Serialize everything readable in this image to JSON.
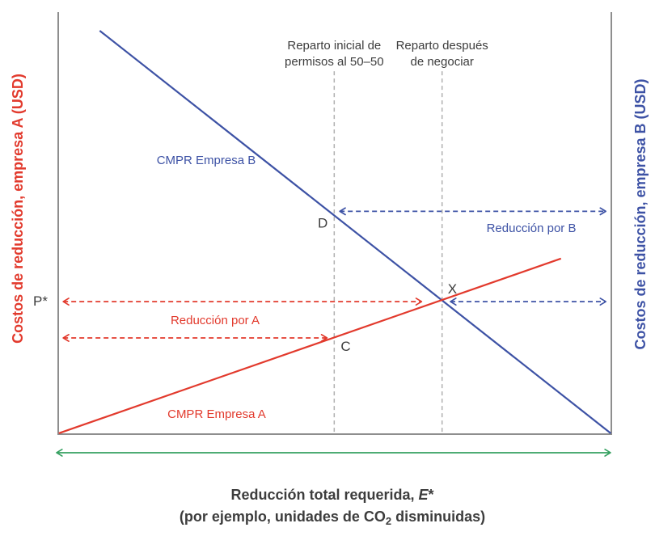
{
  "colors": {
    "red": "#e23a2d",
    "blue": "#3d52a5",
    "green": "#35a060",
    "axis": "#8e8e8e",
    "dashed": "#b0b0b0",
    "text": "#3d3d3d"
  },
  "chart_data": {
    "type": "line",
    "title": "",
    "xlabel": "Reducción total requerida, E* (por ejemplo, unidades de CO2 disminuidas)",
    "ylabel_left": "Costos de reducción, empresa A (USD)",
    "ylabel_right": "Costos de reducción, empresa B (USD)",
    "x_range_norm": [
      0,
      1
    ],
    "y_range_norm": [
      0,
      1
    ],
    "grid": false,
    "legend_position": "none",
    "series": [
      {
        "name": "CMPR Empresa A",
        "color": "#e23a2d",
        "points": [
          [
            0.001,
            0.002
          ],
          [
            0.909,
            0.416
          ]
        ],
        "label_at": [
          0.2865,
          0.038
        ]
      },
      {
        "name": "CMPR Empresa B",
        "color": "#3d52a5",
        "points": [
          [
            0.075,
            0.956
          ],
          [
            0.999,
            0.002
          ]
        ],
        "label_at": [
          0.2675,
          0.64
        ]
      }
    ],
    "verticals": [
      {
        "x": 0.499,
        "y_top": 0.86,
        "label_lines": [
          "Reparto inicial de",
          "permisos al 50–50"
        ]
      },
      {
        "x": 0.694,
        "y_top": 0.86,
        "label_lines": [
          "Reparto después",
          "de negociar"
        ]
      }
    ],
    "points": [
      {
        "label": "D",
        "x": 0.499,
        "y": 0.518
      },
      {
        "label": "C",
        "x": 0.499,
        "y": 0.228
      },
      {
        "label": "X",
        "x": 0.694,
        "y": 0.316
      }
    ],
    "p_star": {
      "label": "P*",
      "y": 0.316
    },
    "arrows": [
      {
        "name": "arrow-reduction-a-upper",
        "color": "#e23a2d",
        "y": 0.314,
        "from": 0.009,
        "to": 0.657,
        "style": "dashed"
      },
      {
        "name": "arrow-reduction-a-lower",
        "color": "#e23a2d",
        "y": 0.228,
        "from": 0.009,
        "to": 0.486,
        "style": "dashed"
      },
      {
        "name": "arrow-reduction-b-upper",
        "color": "#3d52a5",
        "y": 0.528,
        "from": 0.509,
        "to": 0.99,
        "style": "dashed"
      },
      {
        "name": "arrow-reduction-b-right",
        "color": "#3d52a5",
        "y": 0.314,
        "from": 0.709,
        "to": 0.99,
        "style": "dashed"
      },
      {
        "name": "arrow-total-reduction",
        "color": "#35a060",
        "y": -0.044,
        "from": -0.003,
        "to": 0.9985,
        "style": "solid"
      }
    ],
    "arrow_labels": [
      {
        "name": "label-reduction-a",
        "text": "Reducción por A",
        "at": [
          0.2836,
          0.2605
        ],
        "color": "#e23a2d"
      },
      {
        "name": "label-reduction-b",
        "text": "Reducción por B",
        "at": [
          0.8553,
          0.479
        ],
        "color": "#3d52a5"
      }
    ],
    "xlabel_parts": {
      "line1_text": "Reducción total requerida, ",
      "line1_var": "E",
      "line1_sup": "*",
      "line2_pre": "(por ejemplo, unidades de CO",
      "line2_sub": "2",
      "line2_post": " disminuidas)"
    }
  }
}
